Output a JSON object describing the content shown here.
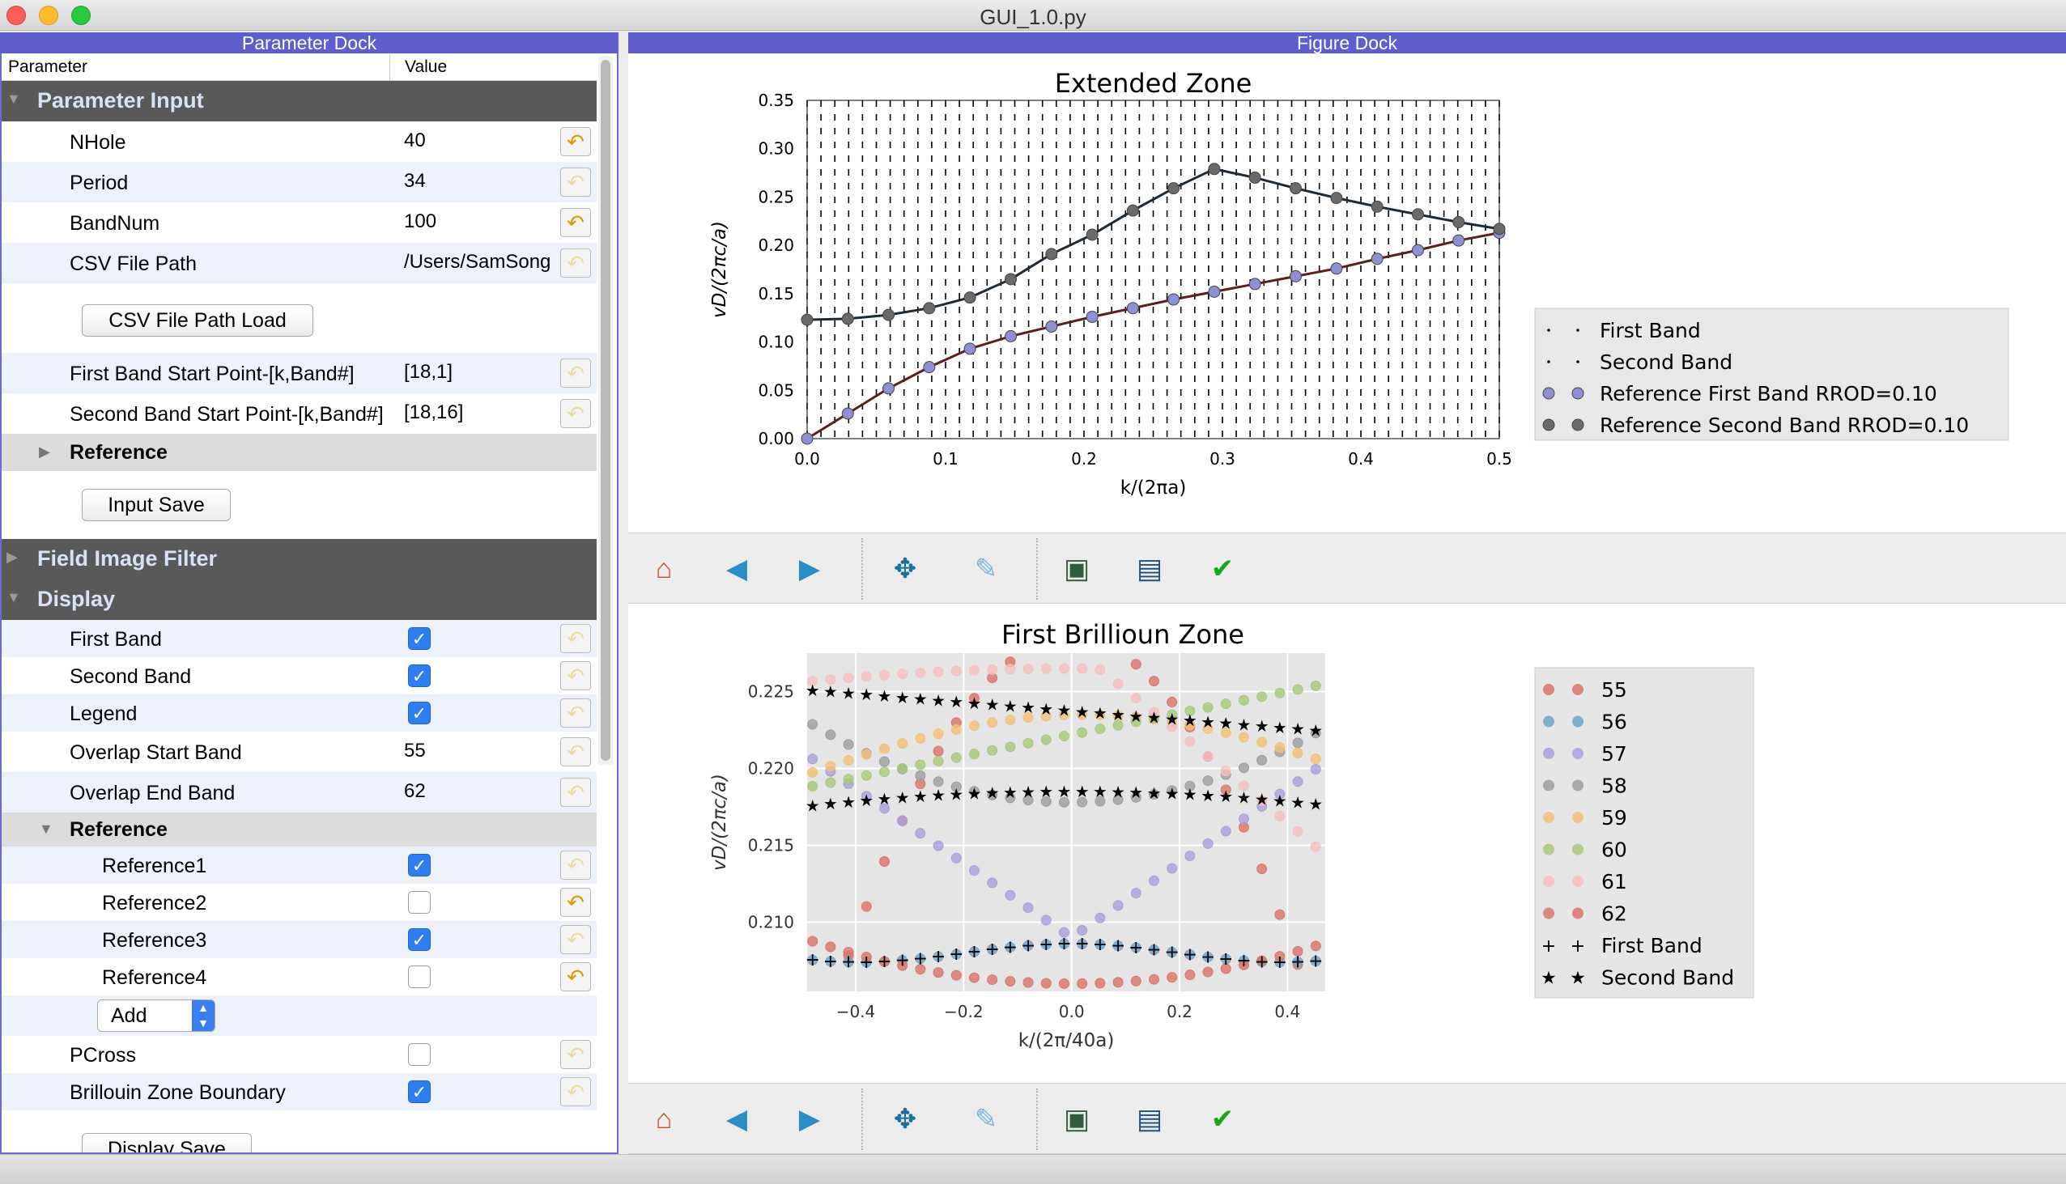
{
  "window": {
    "title": "GUI_1.0.py"
  },
  "param_dock": {
    "title": "Parameter Dock",
    "header": {
      "col1": "Parameter",
      "col2": "Value"
    },
    "sections": {
      "parameter_input": "Parameter Input",
      "reference_collapsed": "Reference",
      "field_image_filter": "Field Image Filter",
      "display": "Display",
      "reference_expanded": "Reference"
    },
    "fields": {
      "nhole": {
        "label": "NHole",
        "value": "40"
      },
      "period": {
        "label": "Period",
        "value": "34"
      },
      "bandnum": {
        "label": "BandNum",
        "value": "100"
      },
      "csv": {
        "label": "CSV File Path",
        "value": "/Users/SamSong"
      },
      "first_start": {
        "label": "First Band Start Point-[k,Band#]",
        "value": "[18,1]"
      },
      "second_start": {
        "label": "Second Band Start Point-[k,Band#]",
        "value": "[18,16]"
      },
      "overlap_start": {
        "label": "Overlap Start Band",
        "value": "55"
      },
      "overlap_end": {
        "label": "Overlap End Band",
        "value": "62"
      }
    },
    "checks": {
      "first_band": {
        "label": "First Band",
        "checked": true
      },
      "second_band": {
        "label": "Second Band",
        "checked": true
      },
      "legend": {
        "label": "Legend",
        "checked": true
      },
      "ref1": {
        "label": "Reference1",
        "checked": true
      },
      "ref2": {
        "label": "Reference2",
        "checked": false
      },
      "ref3": {
        "label": "Reference3",
        "checked": true
      },
      "ref4": {
        "label": "Reference4",
        "checked": false
      },
      "pcross": {
        "label": "PCross",
        "checked": false
      },
      "bz_boundary": {
        "label": "Brillouin Zone Boundary",
        "checked": true
      }
    },
    "buttons": {
      "csv_load": "CSV File Path Load",
      "input_save": "Input Save",
      "display_save": "Display Save"
    },
    "add_select": {
      "value": "Add"
    }
  },
  "figure_dock": {
    "title": "Figure Dock"
  },
  "chart_data": [
    {
      "type": "scatter",
      "title": "Extended Zone",
      "xlabel": "k/(2πa)",
      "ylabel": "vD/(2πc/a)",
      "xlim": [
        0,
        0.5
      ],
      "ylim": [
        0,
        0.35
      ],
      "xticks": [
        "0.0",
        "0.1",
        "0.2",
        "0.3",
        "0.4",
        "0.5"
      ],
      "yticks": [
        "0.00",
        "0.05",
        "0.10",
        "0.15",
        "0.20",
        "0.25",
        "0.30",
        "0.35"
      ],
      "grid": true,
      "legend_position": "right",
      "series": [
        {
          "name": "First Band",
          "marker": "dot",
          "color": "#000000"
        },
        {
          "name": "Second Band",
          "marker": "dot",
          "color": "#000000"
        },
        {
          "name": "Reference First Band RROD=0.10",
          "marker": "circle",
          "color": "#8f8fd6",
          "x": [
            0.0,
            0.0294,
            0.0588,
            0.0882,
            0.1176,
            0.1471,
            0.1765,
            0.2059,
            0.2353,
            0.2647,
            0.2941,
            0.3235,
            0.3529,
            0.3824,
            0.4118,
            0.4412,
            0.4706,
            0.5
          ],
          "y": [
            0.0,
            0.026,
            0.052,
            0.074,
            0.093,
            0.106,
            0.116,
            0.126,
            0.135,
            0.144,
            0.152,
            0.16,
            0.168,
            0.176,
            0.186,
            0.195,
            0.205,
            0.213
          ]
        },
        {
          "name": "Reference Second Band RROD=0.10",
          "marker": "circle",
          "color": "#6a6a6a",
          "x": [
            0.0,
            0.0294,
            0.0588,
            0.0882,
            0.1176,
            0.1471,
            0.1765,
            0.2059,
            0.2353,
            0.2647,
            0.2941,
            0.3235,
            0.3529,
            0.3824,
            0.4118,
            0.4412,
            0.4706,
            0.5
          ],
          "y": [
            0.123,
            0.124,
            0.128,
            0.135,
            0.146,
            0.165,
            0.191,
            0.211,
            0.236,
            0.259,
            0.279,
            0.27,
            0.259,
            0.249,
            0.24,
            0.232,
            0.224,
            0.217
          ]
        }
      ]
    },
    {
      "type": "scatter",
      "title": "First Brillioun Zone",
      "xlabel": "k/(2π/40a)",
      "ylabel": "vD/(2πc/a)",
      "xlim": [
        -0.49,
        0.47
      ],
      "ylim": [
        0.2055,
        0.2275
      ],
      "xticks": [
        "−0.4",
        "−0.2",
        "0.0",
        "0.2",
        "0.4"
      ],
      "yticks": [
        "0.210",
        "0.215",
        "0.220",
        "0.225"
      ],
      "grid": true,
      "legend_position": "right",
      "series": [
        {
          "name": "55",
          "color": "#d9746a",
          "marker": "circle"
        },
        {
          "name": "56",
          "color": "#6fa3c9",
          "marker": "circle"
        },
        {
          "name": "57",
          "color": "#a9a0d8",
          "marker": "circle"
        },
        {
          "name": "58",
          "color": "#9d9d9d",
          "marker": "circle"
        },
        {
          "name": "59",
          "color": "#f0c278",
          "marker": "circle"
        },
        {
          "name": "60",
          "color": "#a8c87a",
          "marker": "circle"
        },
        {
          "name": "61",
          "color": "#f4c0c0",
          "marker": "circle"
        },
        {
          "name": "62",
          "color": "#d9746a",
          "marker": "circle"
        },
        {
          "name": "First Band",
          "color": "#000000",
          "marker": "plus"
        },
        {
          "name": "Second Band",
          "color": "#000000",
          "marker": "star"
        }
      ]
    }
  ]
}
